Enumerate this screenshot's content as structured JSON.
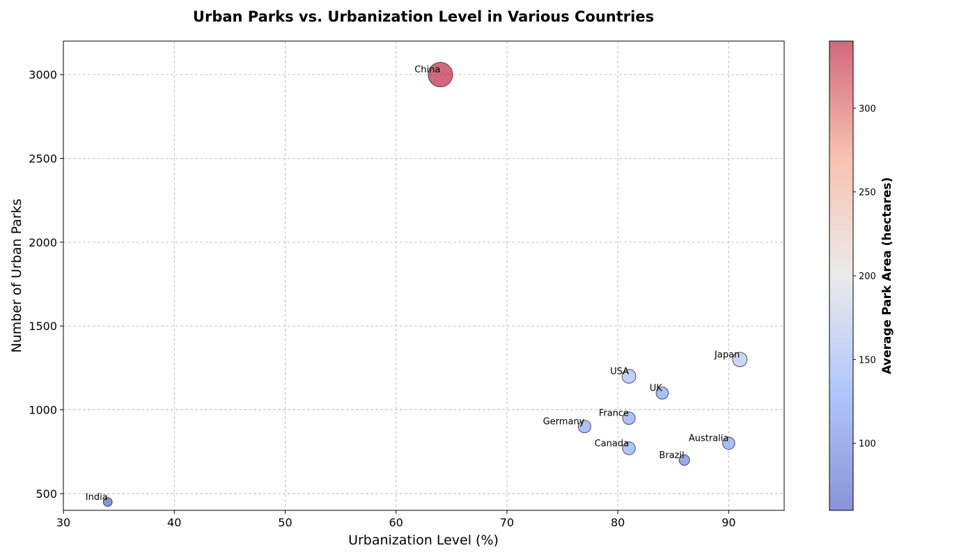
{
  "chart_data": {
    "type": "scatter",
    "title": "Urban Parks vs. Urbanization Level in Various Countries",
    "xlabel": "Urbanization Level (%)",
    "ylabel": "Number of Urban Parks",
    "xlim": [
      30,
      95
    ],
    "ylim": [
      400,
      3200
    ],
    "xticks": [
      "30",
      "40",
      "50",
      "60",
      "70",
      "80",
      "90"
    ],
    "yticks": [
      "500",
      "1000",
      "1500",
      "2000",
      "2500",
      "3000"
    ],
    "grid": true,
    "points": [
      {
        "label": "China",
        "x": 64,
        "y": 3000,
        "area": 340
      },
      {
        "label": "Japan",
        "x": 91,
        "y": 1300,
        "area": 160
      },
      {
        "label": "USA",
        "x": 81,
        "y": 1200,
        "area": 150
      },
      {
        "label": "UK",
        "x": 84,
        "y": 1100,
        "area": 120
      },
      {
        "label": "France",
        "x": 81,
        "y": 950,
        "area": 125
      },
      {
        "label": "Germany",
        "x": 77,
        "y": 900,
        "area": 125
      },
      {
        "label": "Australia",
        "x": 90,
        "y": 800,
        "area": 120
      },
      {
        "label": "Canada",
        "x": 81,
        "y": 770,
        "area": 130
      },
      {
        "label": "Brazil",
        "x": 86,
        "y": 700,
        "area": 90
      },
      {
        "label": "India",
        "x": 34,
        "y": 450,
        "area": 60
      }
    ],
    "colorbar": {
      "label": "Average Park Area (hectares)",
      "range": [
        60,
        340
      ],
      "ticks": [
        "100",
        "150",
        "200",
        "250",
        "300"
      ],
      "colormap": "coolwarm"
    }
  }
}
